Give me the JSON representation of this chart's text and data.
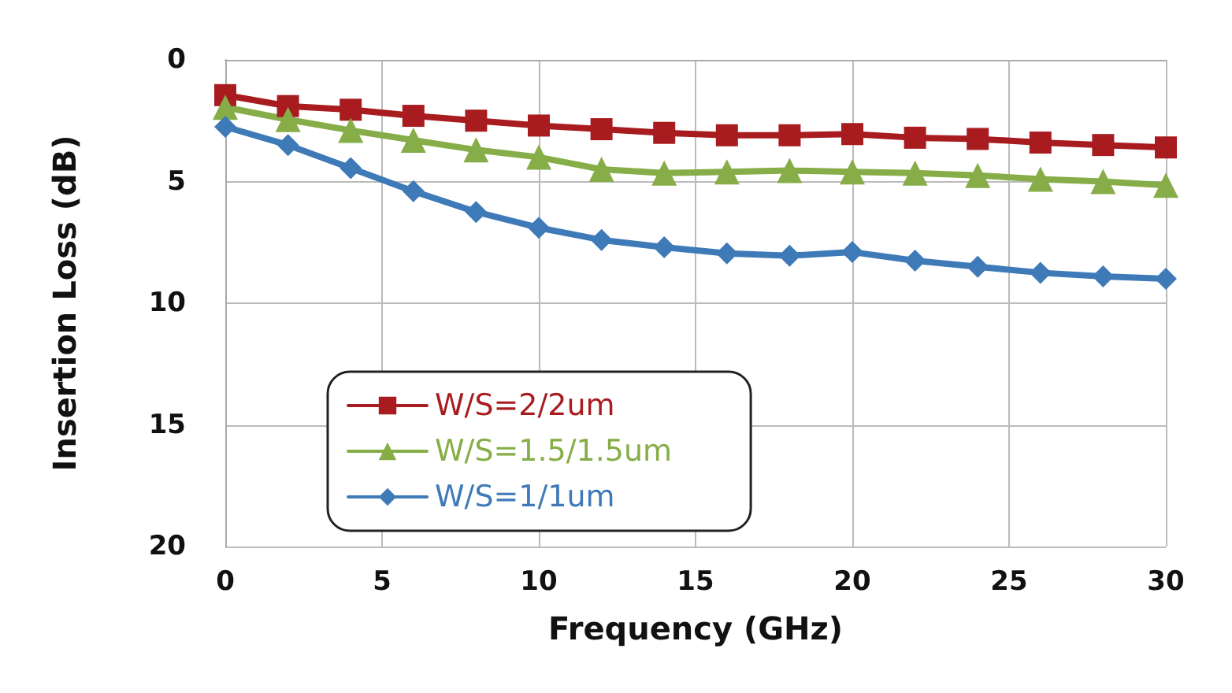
{
  "chart_data": {
    "type": "line",
    "xlabel": "Frequency (GHz)",
    "ylabel": "Insertion Loss (dB)",
    "x": [
      0,
      2,
      4,
      6,
      8,
      10,
      12,
      14,
      16,
      18,
      20,
      22,
      24,
      26,
      28,
      30
    ],
    "series": [
      {
        "name": "W/S=2/2um",
        "color": "#a81c1f",
        "marker": "square",
        "values": [
          1.45,
          1.9,
          2.05,
          2.3,
          2.5,
          2.7,
          2.85,
          3.0,
          3.1,
          3.1,
          3.05,
          3.2,
          3.25,
          3.4,
          3.5,
          3.6
        ]
      },
      {
        "name": "W/S=1.5/1.5um",
        "color": "#86ad47",
        "marker": "triangle",
        "values": [
          1.95,
          2.45,
          2.9,
          3.3,
          3.7,
          4.0,
          4.5,
          4.65,
          4.6,
          4.55,
          4.6,
          4.65,
          4.75,
          4.9,
          5.0,
          5.15
        ]
      },
      {
        "name": "W/S=1/1um",
        "color": "#3f7ab8",
        "marker": "diamond",
        "values": [
          2.75,
          3.5,
          4.45,
          5.4,
          6.25,
          6.9,
          7.4,
          7.7,
          7.95,
          8.05,
          7.9,
          8.25,
          8.5,
          8.75,
          8.9,
          9.0
        ]
      }
    ],
    "xlim": [
      0,
      30
    ],
    "xticks": [
      0,
      5,
      10,
      15,
      20,
      25,
      30
    ],
    "ylim": [
      20,
      0
    ],
    "yticks": [
      0,
      5,
      10,
      15,
      20
    ],
    "grid": true,
    "legend": "bottom left"
  }
}
